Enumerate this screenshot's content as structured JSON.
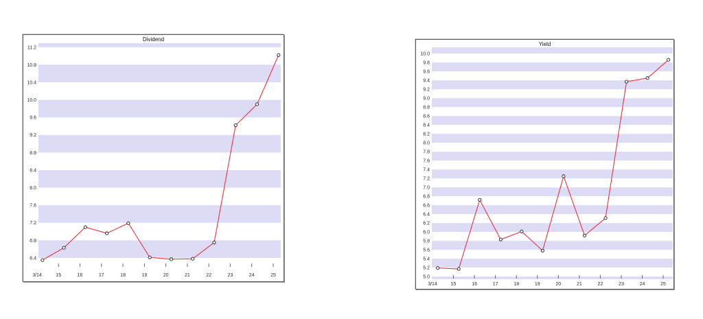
{
  "styles": {
    "background": "#ffffff",
    "band_color": "#dcdcf7",
    "line_color": "#ee3333",
    "marker_fill": "#ffffff",
    "marker_stroke": "#1a1a1a",
    "label_color": "#2b2b2b",
    "tick_color": "#666666",
    "panel_border": "#5c5c5c"
  },
  "chart_data": [
    {
      "type": "line",
      "title": "Dividend",
      "xlabel": "",
      "ylabel": "",
      "legend": "none",
      "grid": "horizontal-bands",
      "x_labels": [
        "3/14",
        "15",
        "16",
        "17",
        "18",
        "19",
        "20",
        "21",
        "22",
        "23",
        "24",
        "25"
      ],
      "values": [
        6.35,
        6.63,
        7.1,
        6.96,
        7.19,
        6.41,
        6.37,
        6.38,
        6.75,
        9.42,
        9.9,
        11.02
      ],
      "ylim": [
        6.18,
        11.29
      ],
      "y_tick_labels": [
        "11.2",
        "10.8",
        "10.4",
        "10.0",
        "9.6",
        "9.2",
        "8.8",
        "8.4",
        "8.0",
        "7.6",
        "7.2",
        "6.8",
        "6.4"
      ],
      "bands": {
        "anchor": 6.4,
        "period": 0.8,
        "band_height": 0.4
      },
      "point_x_offset_fraction": 0.25
    },
    {
      "type": "line",
      "title": "Yield",
      "xlabel": "",
      "ylabel": "",
      "legend": "none",
      "grid": "horizontal-bands",
      "x_labels": [
        "3/14",
        "15",
        "16",
        "17",
        "18",
        "19",
        "20",
        "21",
        "22",
        "23",
        "24",
        "25"
      ],
      "values": [
        5.19,
        5.17,
        6.72,
        5.83,
        6.01,
        5.58,
        7.25,
        5.92,
        6.31,
        9.37,
        9.45,
        9.86
      ],
      "ylim": [
        4.94,
        10.14
      ],
      "y_tick_labels": [
        "10.0",
        "9.8",
        "9.6",
        "9.4",
        "9.2",
        "9.0",
        "8.8",
        "8.6",
        "8.4",
        "8.2",
        "8.0",
        "7.8",
        "7.6",
        "7.4",
        "7.2",
        "7.0",
        "6.8",
        "6.6",
        "6.4",
        "6.2",
        "6.0",
        "5.8",
        "5.6",
        "5.4",
        "5.2",
        "5.0"
      ],
      "bands": {
        "anchor": 5.2,
        "period": 0.4,
        "band_height": 0.2
      },
      "point_x_offset_fraction": 0.25
    }
  ]
}
